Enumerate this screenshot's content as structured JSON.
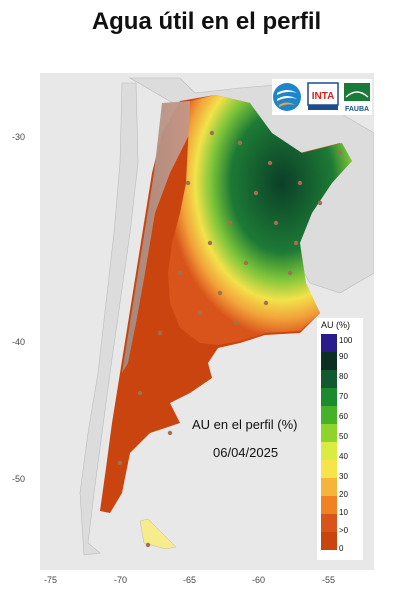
{
  "title": "Agua útil en el perfil",
  "map": {
    "annotation_line1": "AU en el perfil (%)",
    "annotation_line2": "06/04/2025",
    "y_ticks": [
      "-30",
      "-40",
      "-50"
    ],
    "x_ticks": [
      "-75",
      "-70",
      "-65",
      "-60",
      "-55"
    ]
  },
  "legend": {
    "title": "AU (%)",
    "labels": [
      "100",
      "90",
      "80",
      "70",
      "60",
      "50",
      "40",
      "30",
      "20",
      "10",
      ">0",
      "0"
    ],
    "colors": [
      "#2b1a8c",
      "#0b2f23",
      "#0f5b2f",
      "#1c8a2e",
      "#45b22a",
      "#8fd42d",
      "#d9ec42",
      "#f6e44a",
      "#f7b43a",
      "#f08222",
      "#d8541a",
      "#c9440f"
    ]
  },
  "logos": {
    "left": "logo-fauba-water",
    "middle_text": "INTA",
    "right_text": "FAUBA"
  },
  "colors": {
    "ocean": "#e8e8e8",
    "neighbor_land": "#dcdcdc",
    "dry": "#c9440f",
    "wet": "#0b3f28"
  }
}
